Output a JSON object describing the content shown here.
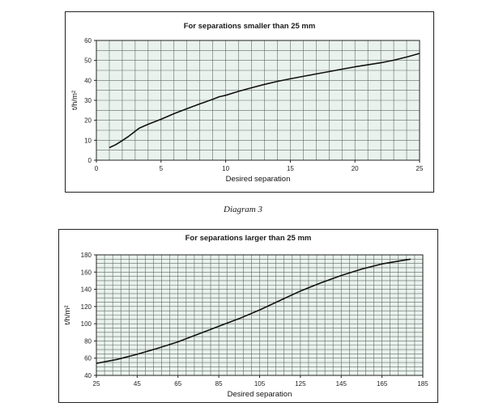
{
  "caption": "Diagram 3",
  "chart_data": [
    {
      "type": "line",
      "title": "For separations smaller than 25 mm",
      "xlabel": "Desired separation",
      "ylabel": "t/h/m²",
      "xlim": [
        0,
        25
      ],
      "ylim": [
        0,
        60
      ],
      "xticks": [
        0,
        5,
        10,
        15,
        20,
        25
      ],
      "yticks": [
        0,
        10,
        20,
        30,
        40,
        50,
        60
      ],
      "grid": true,
      "grid_color": "#d5e3dc",
      "line_color": "#111111",
      "x": [
        1,
        1.5,
        2,
        2.5,
        3,
        3.3,
        4,
        5,
        6,
        7,
        8,
        9,
        9.5,
        10,
        11,
        12,
        13,
        14,
        15,
        16,
        17,
        18,
        19,
        20,
        21,
        22,
        23,
        24,
        25
      ],
      "y": [
        6.3,
        7.8,
        9.8,
        12,
        14.5,
        16,
        18,
        20.5,
        23.3,
        25.8,
        28.2,
        30.5,
        31.8,
        32.5,
        34.5,
        36.3,
        38,
        39.5,
        40.8,
        42,
        43.2,
        44.4,
        45.6,
        46.8,
        47.8,
        48.8,
        50.1,
        51.7,
        53.5
      ]
    },
    {
      "type": "line",
      "title": "For separations larger than 25 mm",
      "xlabel": "Desired separation",
      "ylabel": "t/h/m²",
      "xlim": [
        25,
        185
      ],
      "ylim": [
        40,
        180
      ],
      "xticks": [
        25,
        45,
        65,
        85,
        105,
        125,
        145,
        165,
        185
      ],
      "yticks": [
        40,
        60,
        80,
        100,
        120,
        140,
        160,
        180
      ],
      "grid": true,
      "grid_color": "#d5e3dc",
      "line_color": "#111111",
      "x": [
        25,
        35,
        45,
        55,
        65,
        75,
        85,
        95,
        105,
        115,
        125,
        135,
        145,
        155,
        165,
        175,
        179
      ],
      "y": [
        54,
        58.5,
        64.5,
        71.5,
        79,
        88,
        97,
        106,
        116,
        127,
        138,
        147.5,
        156,
        163.5,
        169.5,
        173.5,
        175
      ]
    }
  ]
}
